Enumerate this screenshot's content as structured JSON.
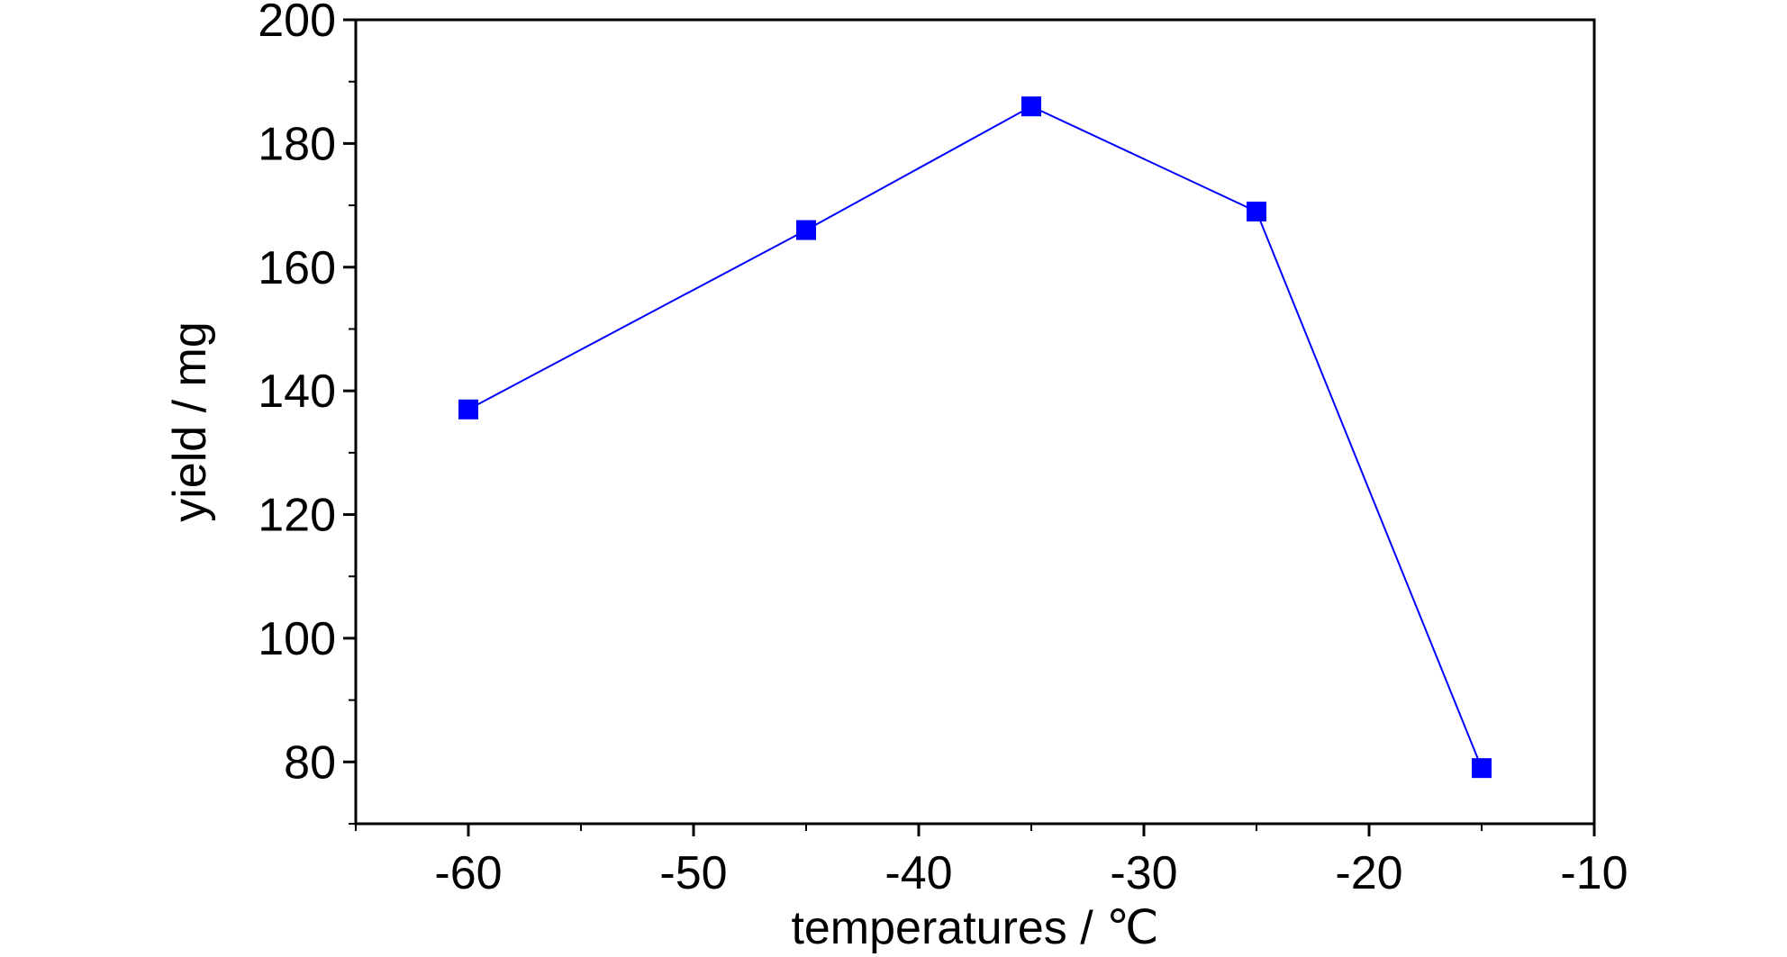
{
  "chart_data": {
    "type": "line",
    "title": "",
    "xlabel": "temperatures / ℃",
    "ylabel": "yield / mg",
    "xlim": [
      -65,
      -10
    ],
    "ylim": [
      70,
      200
    ],
    "x_ticks": [
      -60,
      -50,
      -40,
      -30,
      -20,
      -10
    ],
    "y_ticks": [
      80,
      100,
      120,
      140,
      160,
      180,
      200
    ],
    "grid": false,
    "legend": "none",
    "marker": "square",
    "series_color": "#0000ff",
    "series": [
      {
        "x": [
          -60,
          -45,
          -35,
          -25,
          -15
        ],
        "values": [
          137,
          166,
          186,
          169,
          79
        ]
      }
    ]
  }
}
